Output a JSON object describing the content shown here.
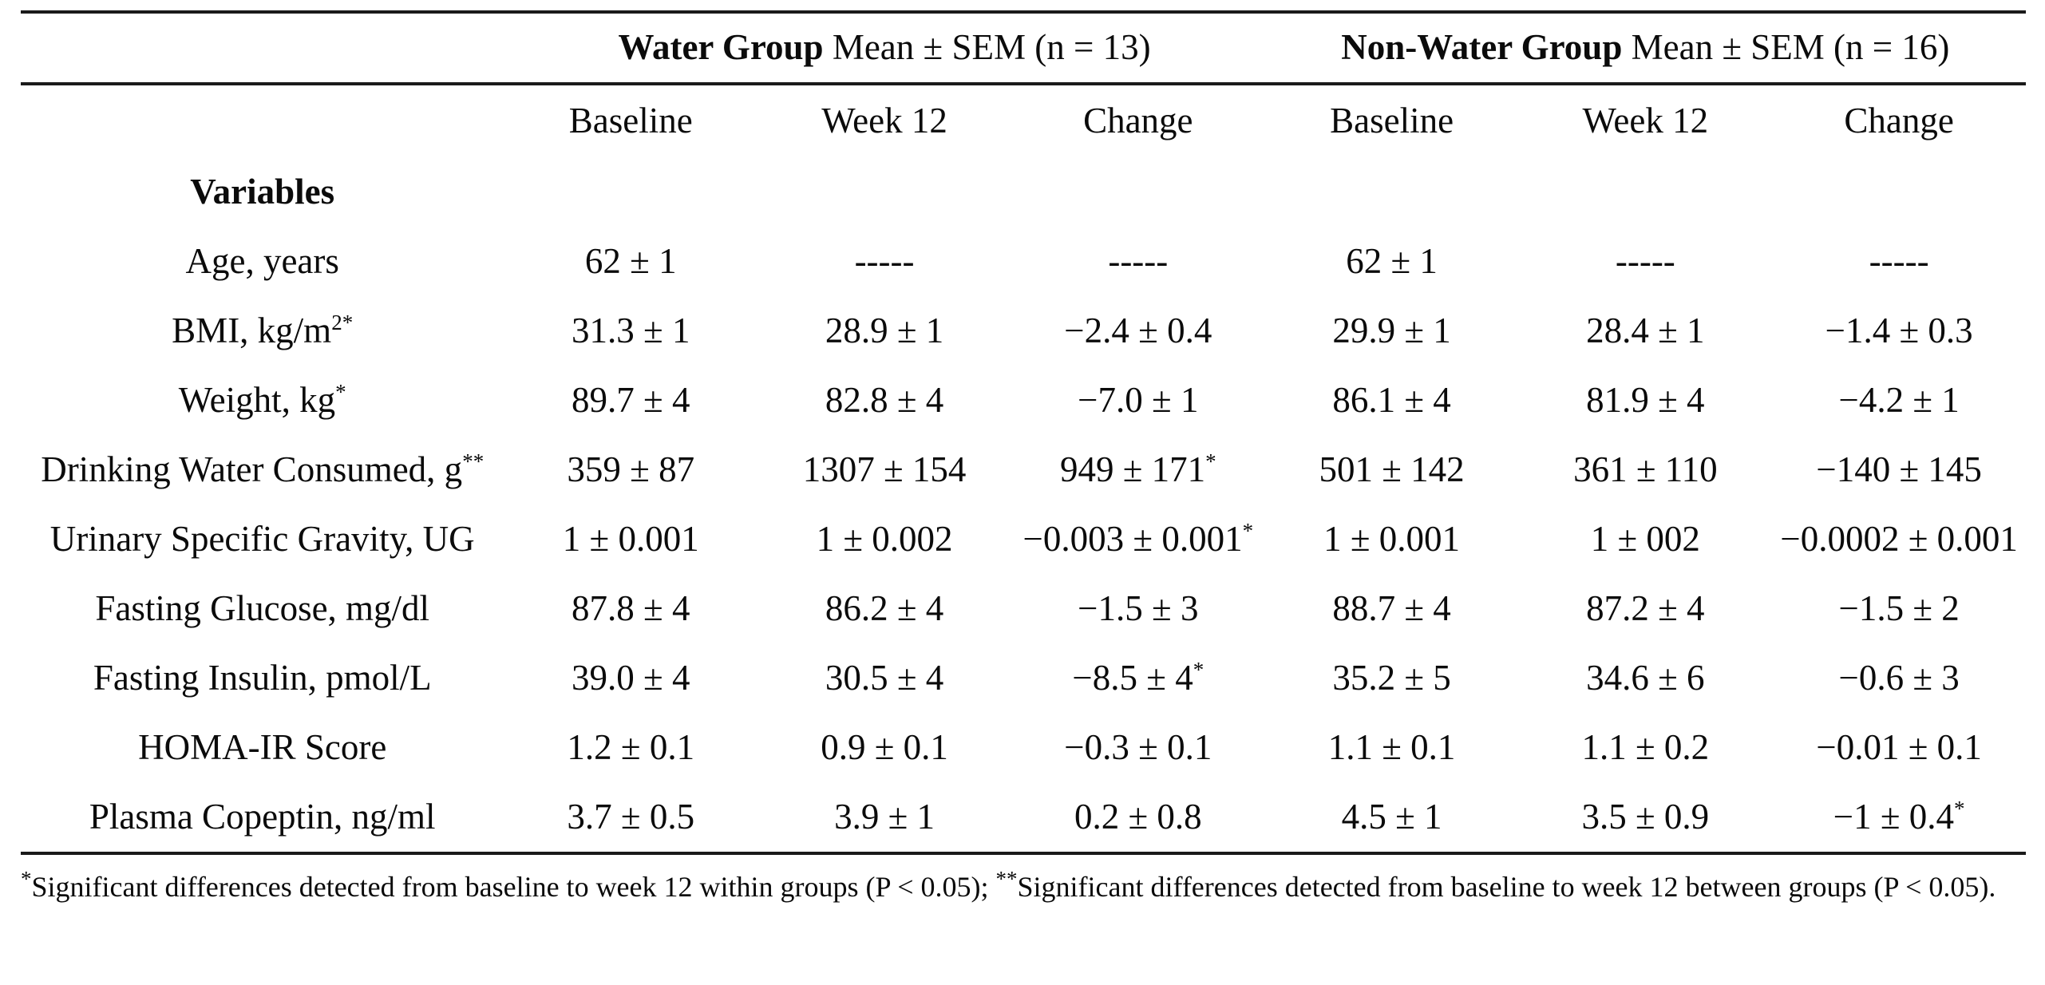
{
  "table": {
    "groups": [
      {
        "bold": "Water Group",
        "rest": " Mean ± SEM (n = 13)"
      },
      {
        "bold": "Non-Water Group",
        "rest": " Mean ± SEM (n = 16)"
      }
    ],
    "sub_headers": [
      "Baseline",
      "Week 12",
      "Change",
      "Baseline",
      "Week 12",
      "Change"
    ],
    "rows": [
      {
        "label": "Variables",
        "label_sup": "",
        "bold": true,
        "values": [
          {
            "t": "",
            "s": ""
          },
          {
            "t": "",
            "s": ""
          },
          {
            "t": "",
            "s": ""
          },
          {
            "t": "",
            "s": ""
          },
          {
            "t": "",
            "s": ""
          },
          {
            "t": "",
            "s": ""
          }
        ]
      },
      {
        "label": "Age, years",
        "label_sup": "",
        "bold": false,
        "values": [
          {
            "t": "62 ± 1",
            "s": ""
          },
          {
            "t": "-----",
            "s": ""
          },
          {
            "t": "-----",
            "s": ""
          },
          {
            "t": "62 ± 1",
            "s": ""
          },
          {
            "t": "-----",
            "s": ""
          },
          {
            "t": "-----",
            "s": ""
          }
        ]
      },
      {
        "label": "BMI, kg/m",
        "label_sup": "2*",
        "bold": false,
        "values": [
          {
            "t": "31.3 ± 1",
            "s": ""
          },
          {
            "t": "28.9 ± 1",
            "s": ""
          },
          {
            "t": "−2.4 ± 0.4",
            "s": ""
          },
          {
            "t": "29.9 ± 1",
            "s": ""
          },
          {
            "t": "28.4 ± 1",
            "s": ""
          },
          {
            "t": "−1.4 ± 0.3",
            "s": ""
          }
        ]
      },
      {
        "label": "Weight, kg",
        "label_sup": "*",
        "bold": false,
        "values": [
          {
            "t": "89.7 ± 4",
            "s": ""
          },
          {
            "t": "82.8 ± 4",
            "s": ""
          },
          {
            "t": "−7.0 ± 1",
            "s": ""
          },
          {
            "t": "86.1 ± 4",
            "s": ""
          },
          {
            "t": "81.9 ± 4",
            "s": ""
          },
          {
            "t": "−4.2 ± 1",
            "s": ""
          }
        ]
      },
      {
        "label": "Drinking Water Consumed, g",
        "label_sup": "**",
        "bold": false,
        "values": [
          {
            "t": "359 ± 87",
            "s": ""
          },
          {
            "t": "1307 ± 154",
            "s": ""
          },
          {
            "t": "949 ± 171",
            "s": "*"
          },
          {
            "t": "501 ± 142",
            "s": ""
          },
          {
            "t": "361 ± 110",
            "s": ""
          },
          {
            "t": "−140 ± 145",
            "s": ""
          }
        ]
      },
      {
        "label": "Urinary Specific Gravity, UG",
        "label_sup": "",
        "bold": false,
        "values": [
          {
            "t": "1 ± 0.001",
            "s": ""
          },
          {
            "t": "1 ± 0.002",
            "s": ""
          },
          {
            "t": "−0.003 ± 0.001",
            "s": "*"
          },
          {
            "t": "1 ± 0.001",
            "s": ""
          },
          {
            "t": "1 ± 002",
            "s": ""
          },
          {
            "t": "−0.0002 ± 0.001",
            "s": ""
          }
        ]
      },
      {
        "label": "Fasting Glucose, mg/dl",
        "label_sup": "",
        "bold": false,
        "values": [
          {
            "t": "87.8 ± 4",
            "s": ""
          },
          {
            "t": "86.2 ± 4",
            "s": ""
          },
          {
            "t": "−1.5 ± 3",
            "s": ""
          },
          {
            "t": "88.7 ± 4",
            "s": ""
          },
          {
            "t": "87.2 ± 4",
            "s": ""
          },
          {
            "t": "−1.5 ± 2",
            "s": ""
          }
        ]
      },
      {
        "label": "Fasting Insulin, pmol/L",
        "label_sup": "",
        "bold": false,
        "values": [
          {
            "t": "39.0 ± 4",
            "s": ""
          },
          {
            "t": "30.5 ± 4",
            "s": ""
          },
          {
            "t": "−8.5 ± 4",
            "s": "*"
          },
          {
            "t": "35.2 ± 5",
            "s": ""
          },
          {
            "t": "34.6 ± 6",
            "s": ""
          },
          {
            "t": "−0.6 ± 3",
            "s": ""
          }
        ]
      },
      {
        "label": "HOMA-IR Score",
        "label_sup": "",
        "bold": false,
        "values": [
          {
            "t": "1.2 ± 0.1",
            "s": ""
          },
          {
            "t": "0.9 ± 0.1",
            "s": ""
          },
          {
            "t": "−0.3 ± 0.1",
            "s": ""
          },
          {
            "t": "1.1 ± 0.1",
            "s": ""
          },
          {
            "t": "1.1 ± 0.2",
            "s": ""
          },
          {
            "t": "−0.01 ± 0.1",
            "s": ""
          }
        ]
      },
      {
        "label": "Plasma Copeptin, ng/ml",
        "label_sup": "",
        "bold": false,
        "values": [
          {
            "t": "3.7 ± 0.5",
            "s": ""
          },
          {
            "t": "3.9 ± 1",
            "s": ""
          },
          {
            "t": "0.2 ± 0.8",
            "s": ""
          },
          {
            "t": "4.5 ± 1",
            "s": ""
          },
          {
            "t": "3.5 ± 0.9",
            "s": ""
          },
          {
            "t": "−1 ± 0.4",
            "s": "*"
          }
        ]
      }
    ]
  },
  "footnote": {
    "sup1": "*",
    "part1": "Significant differences detected from baseline to week 12 within groups (P < 0.05); ",
    "sup2": "**",
    "part2": "Significant differences detected from baseline to week 12 between groups (P < 0.05)."
  }
}
